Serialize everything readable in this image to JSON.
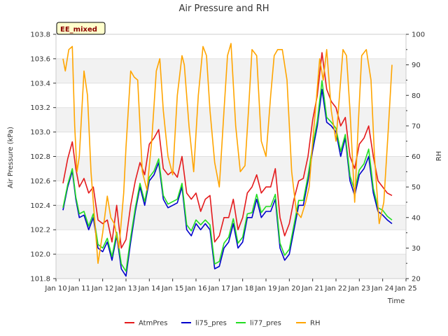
{
  "chart_data": {
    "type": "line",
    "title": "Air Pressure and RH",
    "xlabel": "Time",
    "ylabel": "Air Pressure (kPa)",
    "y2label": "RH",
    "badge": "EE_mixed",
    "x_tick_labels": [
      "Jan 10",
      "Jan 11",
      "Jan 12",
      "Jan 13",
      "Jan 14",
      "Jan 15",
      "Jan 16",
      "Jan 17",
      "Jan 18",
      "Jan 19",
      "Jan 20",
      "Jan 21",
      "Jan 22",
      "Jan 23",
      "Jan 24",
      "Jan 25"
    ],
    "xlim": [
      10,
      25
    ],
    "ylim": [
      101.8,
      103.8
    ],
    "y_ticks": [
      101.8,
      102.0,
      102.2,
      102.4,
      102.6,
      102.8,
      103.0,
      103.2,
      103.4,
      103.6,
      103.8
    ],
    "y_tick_labels": [
      "101.8",
      "102.0",
      "102.2",
      "102.4",
      "102.6",
      "102.8",
      "103.0",
      "103.2",
      "103.4",
      "103.6",
      "103.8"
    ],
    "y2lim": [
      20,
      100
    ],
    "y2_ticks": [
      20,
      30,
      40,
      50,
      60,
      70,
      80,
      90,
      100
    ],
    "y2_tick_labels": [
      "20",
      "30",
      "40",
      "50",
      "60",
      "70",
      "80",
      "90",
      "100"
    ],
    "grid": true,
    "legend_position": "bottom",
    "series": [
      {
        "name": "AtmPres",
        "color": "#e41a1c",
        "axis": "left",
        "x": [
          10.3,
          10.5,
          10.7,
          10.85,
          11.0,
          11.2,
          11.4,
          11.6,
          11.8,
          12.0,
          12.2,
          12.4,
          12.6,
          12.8,
          13.0,
          13.2,
          13.4,
          13.6,
          13.8,
          14.0,
          14.2,
          14.4,
          14.6,
          14.8,
          15.0,
          15.2,
          15.4,
          15.6,
          15.8,
          16.0,
          16.2,
          16.4,
          16.6,
          16.8,
          17.0,
          17.2,
          17.4,
          17.6,
          17.8,
          18.0,
          18.2,
          18.4,
          18.6,
          18.8,
          19.0,
          19.2,
          19.4,
          19.6,
          19.8,
          20.0,
          20.2,
          20.4,
          20.6,
          20.8,
          21.0,
          21.2,
          21.4,
          21.6,
          21.8,
          22.0,
          22.2,
          22.4,
          22.6,
          22.8,
          23.0,
          23.2,
          23.4,
          23.6,
          23.8,
          24.0,
          24.2,
          24.4
        ],
        "values": [
          102.58,
          102.78,
          102.92,
          102.7,
          102.55,
          102.62,
          102.5,
          102.55,
          102.28,
          102.25,
          102.28,
          102.1,
          102.4,
          102.05,
          102.12,
          102.4,
          102.6,
          102.75,
          102.65,
          102.9,
          102.95,
          103.02,
          102.7,
          102.65,
          102.68,
          102.63,
          102.8,
          102.5,
          102.45,
          102.5,
          102.35,
          102.45,
          102.48,
          102.1,
          102.15,
          102.3,
          102.3,
          102.45,
          102.2,
          102.3,
          102.5,
          102.55,
          102.65,
          102.5,
          102.55,
          102.55,
          102.7,
          102.3,
          102.15,
          102.25,
          102.45,
          102.6,
          102.62,
          102.8,
          103.1,
          103.3,
          103.65,
          103.35,
          103.25,
          103.2,
          103.05,
          103.12,
          102.8,
          102.7,
          102.9,
          102.95,
          103.05,
          102.8,
          102.6,
          102.55,
          102.5,
          102.48
        ]
      },
      {
        "name": "li75_pres",
        "color": "#0000cc",
        "axis": "left",
        "x": [
          10.3,
          10.5,
          10.7,
          10.85,
          11.0,
          11.2,
          11.4,
          11.6,
          11.8,
          12.0,
          12.2,
          12.4,
          12.6,
          12.8,
          13.0,
          13.2,
          13.4,
          13.6,
          13.8,
          14.0,
          14.2,
          14.4,
          14.6,
          14.8,
          15.0,
          15.2,
          15.4,
          15.6,
          15.8,
          16.0,
          16.2,
          16.4,
          16.6,
          16.8,
          17.0,
          17.2,
          17.4,
          17.6,
          17.8,
          18.0,
          18.2,
          18.4,
          18.6,
          18.8,
          19.0,
          19.2,
          19.4,
          19.6,
          19.8,
          20.0,
          20.2,
          20.4,
          20.6,
          20.8,
          21.0,
          21.2,
          21.4,
          21.6,
          21.8,
          22.0,
          22.2,
          22.4,
          22.6,
          22.8,
          23.0,
          23.2,
          23.4,
          23.6,
          23.8,
          24.0,
          24.2,
          24.4
        ],
        "values": [
          102.36,
          102.55,
          102.68,
          102.45,
          102.3,
          102.32,
          102.2,
          102.3,
          102.05,
          102.02,
          102.1,
          101.95,
          102.15,
          101.88,
          101.82,
          102.1,
          102.35,
          102.55,
          102.4,
          102.6,
          102.65,
          102.75,
          102.45,
          102.38,
          102.4,
          102.42,
          102.55,
          102.2,
          102.15,
          102.25,
          102.2,
          102.25,
          102.2,
          101.88,
          101.9,
          102.05,
          102.1,
          102.25,
          102.05,
          102.1,
          102.3,
          102.3,
          102.45,
          102.3,
          102.35,
          102.35,
          102.45,
          102.05,
          101.95,
          102.0,
          102.2,
          102.4,
          102.4,
          102.6,
          102.85,
          103.05,
          103.35,
          103.08,
          103.05,
          103.0,
          102.8,
          102.95,
          102.6,
          102.48,
          102.65,
          102.7,
          102.8,
          102.5,
          102.35,
          102.32,
          102.28,
          102.25
        ]
      },
      {
        "name": "li77_pres",
        "color": "#22dd22",
        "axis": "left",
        "x": [
          10.3,
          10.5,
          10.7,
          10.85,
          11.0,
          11.2,
          11.4,
          11.6,
          11.8,
          12.0,
          12.2,
          12.4,
          12.6,
          12.8,
          13.0,
          13.2,
          13.4,
          13.6,
          13.8,
          14.0,
          14.2,
          14.4,
          14.6,
          14.8,
          15.0,
          15.2,
          15.4,
          15.6,
          15.8,
          16.0,
          16.2,
          16.4,
          16.6,
          16.8,
          17.0,
          17.2,
          17.4,
          17.6,
          17.8,
          18.0,
          18.2,
          18.4,
          18.6,
          18.8,
          19.0,
          19.2,
          19.4,
          19.6,
          19.8,
          20.0,
          20.2,
          20.4,
          20.6,
          20.8,
          21.0,
          21.2,
          21.4,
          21.6,
          21.8,
          22.0,
          22.2,
          22.4,
          22.6,
          22.8,
          23.0,
          23.2,
          23.4,
          23.6,
          23.8,
          24.0,
          24.2,
          24.4
        ],
        "values": [
          102.38,
          102.57,
          102.7,
          102.47,
          102.33,
          102.35,
          102.23,
          102.33,
          102.08,
          102.05,
          102.13,
          101.98,
          102.18,
          101.92,
          101.86,
          102.14,
          102.38,
          102.58,
          102.43,
          102.63,
          102.68,
          102.78,
          102.48,
          102.41,
          102.43,
          102.45,
          102.58,
          102.24,
          102.19,
          102.28,
          102.24,
          102.28,
          102.24,
          101.92,
          101.94,
          102.09,
          102.14,
          102.29,
          102.09,
          102.14,
          102.33,
          102.34,
          102.49,
          102.34,
          102.39,
          102.39,
          102.49,
          102.09,
          101.99,
          102.04,
          102.24,
          102.44,
          102.44,
          102.64,
          102.89,
          103.09,
          103.42,
          103.12,
          103.08,
          103.03,
          102.84,
          102.98,
          102.64,
          102.52,
          102.69,
          102.74,
          102.86,
          102.54,
          102.38,
          102.36,
          102.31,
          102.28
        ]
      },
      {
        "name": "RH",
        "color": "#ffa500",
        "axis": "right",
        "x": [
          10.3,
          10.4,
          10.55,
          10.7,
          10.8,
          10.9,
          11.0,
          11.2,
          11.35,
          11.5,
          11.6,
          11.8,
          12.0,
          12.2,
          12.35,
          12.5,
          12.7,
          12.9,
          13.0,
          13.2,
          13.35,
          13.5,
          13.7,
          13.9,
          14.1,
          14.3,
          14.45,
          14.6,
          14.8,
          15.0,
          15.2,
          15.4,
          15.5,
          15.7,
          15.9,
          16.1,
          16.3,
          16.45,
          16.6,
          16.8,
          17.0,
          17.2,
          17.35,
          17.5,
          17.7,
          17.9,
          18.1,
          18.25,
          18.4,
          18.6,
          18.8,
          19.0,
          19.2,
          19.35,
          19.5,
          19.7,
          19.9,
          20.1,
          20.3,
          20.5,
          20.7,
          20.85,
          21.0,
          21.15,
          21.3,
          21.45,
          21.6,
          21.8,
          22.0,
          22.15,
          22.3,
          22.45,
          22.6,
          22.8,
          22.95,
          23.1,
          23.3,
          23.5,
          23.65,
          23.85,
          24.05,
          24.25,
          24.4
        ],
        "values": [
          92,
          88,
          95,
          96,
          70,
          55,
          60,
          88,
          80,
          55,
          45,
          25,
          35,
          47,
          40,
          38,
          30,
          48,
          63,
          88,
          86,
          85,
          55,
          49,
          65,
          88,
          92,
          75,
          60,
          54,
          80,
          93,
          90,
          70,
          55,
          80,
          96,
          93,
          75,
          58,
          50,
          75,
          93,
          97,
          70,
          55,
          57,
          75,
          95,
          93,
          65,
          60,
          80,
          93,
          95,
          95,
          85,
          55,
          42,
          40,
          45,
          50,
          65,
          78,
          92,
          85,
          95,
          75,
          65,
          80,
          95,
          93,
          75,
          45,
          70,
          93,
          95,
          85,
          60,
          38,
          45,
          70,
          90
        ]
      }
    ]
  }
}
